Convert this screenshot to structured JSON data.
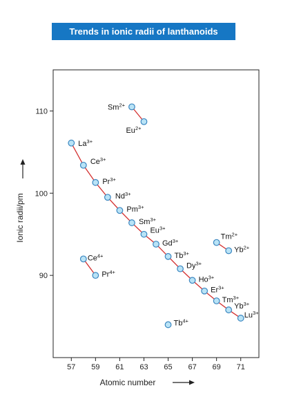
{
  "title": "Trends in ionic radii of lanthanoids",
  "chart_data": {
    "type": "scatter",
    "title": "Trends in ionic radii of lanthanoids",
    "xlabel": "Atomic number",
    "ylabel": "Ionic radii/pm",
    "xlim": [
      55.5,
      72.5
    ],
    "ylim": [
      80,
      115
    ],
    "xticks": [
      57,
      59,
      61,
      63,
      65,
      67,
      69,
      71
    ],
    "yticks": [
      90,
      100,
      110
    ],
    "grid": false,
    "colors": {
      "line": "#d32f2f",
      "marker_fill": "#b9e3f6",
      "marker_stroke": "#3a86c0",
      "title_bg": "#1677c4"
    },
    "series": [
      {
        "name": "",
        "points": [
          {
            "x": 57,
            "y": 106.1,
            "ion": "La",
            "charge": "3+"
          },
          {
            "x": 58,
            "y": 103.4,
            "ion": "Ce",
            "charge": "3+"
          },
          {
            "x": 59,
            "y": 101.3,
            "ion": "Pr",
            "charge": "3+"
          },
          {
            "x": 60,
            "y": 99.5,
            "ion": "Nd",
            "charge": "3+"
          },
          {
            "x": 61,
            "y": 97.9,
            "ion": "Pm",
            "charge": "3+"
          },
          {
            "x": 62,
            "y": 96.4,
            "ion": "Sm",
            "charge": "3+"
          },
          {
            "x": 63,
            "y": 95.0,
            "ion": "Eu",
            "charge": "3+"
          },
          {
            "x": 64,
            "y": 93.8,
            "ion": "Gd",
            "charge": "3+"
          },
          {
            "x": 65,
            "y": 92.3,
            "ion": "Tb",
            "charge": "3+"
          },
          {
            "x": 66,
            "y": 90.8,
            "ion": "Dy",
            "charge": "3+"
          },
          {
            "x": 67,
            "y": 89.4,
            "ion": "Ho",
            "charge": "3+"
          },
          {
            "x": 68,
            "y": 88.1,
            "ion": "Er",
            "charge": "3+"
          },
          {
            "x": 69,
            "y": 86.9,
            "ion": "Tm",
            "charge": "3+"
          },
          {
            "x": 70,
            "y": 85.8,
            "ion": "Yb",
            "charge": "3+"
          },
          {
            "x": 71,
            "y": 84.8,
            "ion": "Lu",
            "charge": "3+"
          }
        ]
      },
      {
        "name": "",
        "points": [
          {
            "x": 62,
            "y": 110.5,
            "ion": "Sm",
            "charge": "2+"
          },
          {
            "x": 63,
            "y": 108.7,
            "ion": "Eu",
            "charge": "2+"
          }
        ]
      },
      {
        "name": "",
        "points": [
          {
            "x": 58,
            "y": 92.0,
            "ion": "Ce",
            "charge": "4+"
          },
          {
            "x": 59,
            "y": 90.0,
            "ion": "Pr",
            "charge": "4+"
          }
        ]
      },
      {
        "name": "",
        "points": [
          {
            "x": 69,
            "y": 94.0,
            "ion": "Tm",
            "charge": "2+"
          },
          {
            "x": 70,
            "y": 93.0,
            "ion": "Yb",
            "charge": "2+"
          }
        ]
      },
      {
        "name": "",
        "points": [
          {
            "x": 65,
            "y": 84.0,
            "ion": "Tb",
            "charge": "4+"
          }
        ]
      }
    ]
  }
}
